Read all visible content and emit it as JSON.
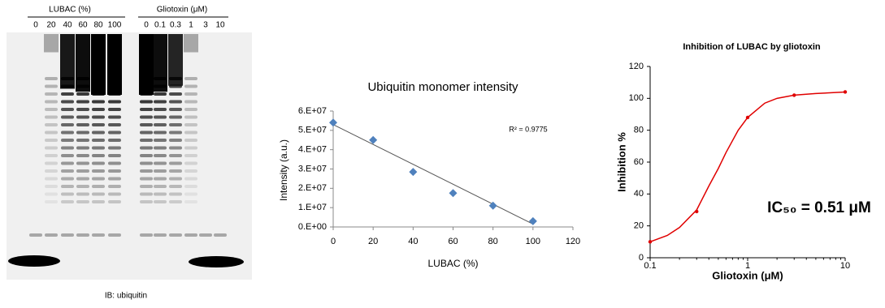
{
  "blot": {
    "lubac_header": "LUBAC (%)",
    "lubac_lanes": [
      "0",
      "20",
      "40",
      "60",
      "80",
      "100"
    ],
    "gliotoxin_header": "Gliotoxin (μM)",
    "gliotoxin_lanes": [
      "0",
      "0.1",
      "0.3",
      "1",
      "3",
      "10"
    ],
    "caption": "IB: ubiquitin"
  },
  "chart_data": [
    {
      "type": "scatter",
      "title": "Ubiquitin monomer intensity",
      "x_label": "LUBAC  (%)",
      "y_label": "Intensity (a.u.)",
      "annotation": "R² = 0.9775",
      "x": [
        0,
        20,
        40,
        60,
        80,
        100
      ],
      "values": [
        54000000,
        45000000,
        28500000,
        17500000,
        11000000,
        3000000
      ],
      "color": "#4f81bd",
      "trendline": {
        "x": [
          0,
          100
        ],
        "values": [
          53000000,
          1500000
        ],
        "color": "#555555"
      },
      "xlim": [
        0,
        120
      ],
      "xticks": [
        0,
        20,
        40,
        60,
        80,
        100,
        120
      ],
      "ylim": [
        0,
        60000000
      ],
      "yticks": [
        {
          "value": 0,
          "label": "0.E+00"
        },
        {
          "value": 10000000,
          "label": "1.E+07"
        },
        {
          "value": 20000000,
          "label": "2.E+07"
        },
        {
          "value": 30000000,
          "label": "3.E+07"
        },
        {
          "value": 40000000,
          "label": "4.E+07"
        },
        {
          "value": 50000000,
          "label": "5.E+07"
        },
        {
          "value": 60000000,
          "label": "6.E+07"
        }
      ]
    },
    {
      "type": "scatter",
      "title": "Inhibition of LUBAC by gliotoxin",
      "x_label": "Gliotoxin (μM)",
      "y_label": "Inhibition %",
      "annotation": "IC₅₀ = 0.51 μM",
      "xscale": "log",
      "x": [
        0.1,
        0.3,
        1,
        3,
        10
      ],
      "values": [
        10,
        29,
        88,
        102,
        104
      ],
      "color": "#e00000",
      "curve": {
        "x": [
          0.1,
          0.15,
          0.2,
          0.3,
          0.4,
          0.5,
          0.6,
          0.8,
          1,
          1.5,
          2,
          3,
          5,
          10
        ],
        "values": [
          10,
          14,
          19,
          30,
          45,
          56,
          66,
          80,
          88,
          97,
          100,
          102,
          103,
          104
        ],
        "color": "#e00000"
      },
      "xlim": [
        0.1,
        10
      ],
      "xticks": [
        0.1,
        1,
        10
      ],
      "ylim": [
        0,
        120
      ],
      "yticks": [
        0,
        20,
        40,
        60,
        80,
        100,
        120
      ]
    }
  ]
}
